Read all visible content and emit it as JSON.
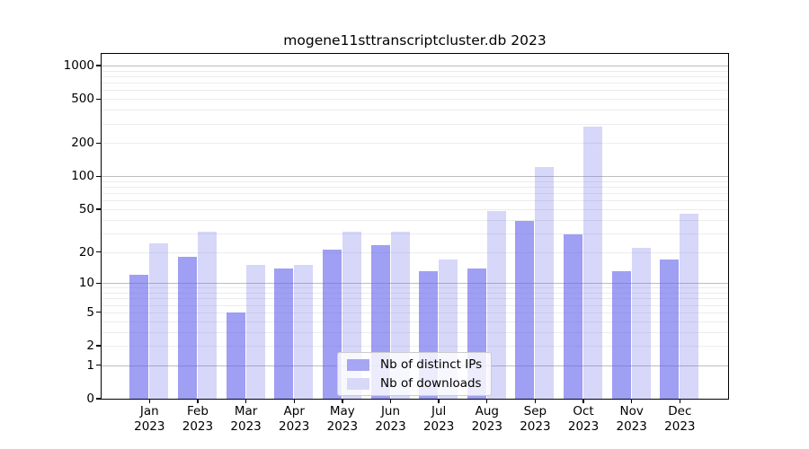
{
  "chart_data": {
    "type": "bar",
    "title": "mogene11sttranscriptcluster.db 2023",
    "categories": [
      "Jan 2023",
      "Feb 2023",
      "Mar 2023",
      "Apr 2023",
      "May 2023",
      "Jun 2023",
      "Jul 2023",
      "Aug 2023",
      "Sep 2023",
      "Oct 2023",
      "Nov 2023",
      "Dec 2023"
    ],
    "series": [
      {
        "name": "Nb of distinct IPs",
        "color": "#a6a6f2",
        "fill_rgba": "rgba(100,100,235,0.62)",
        "values": [
          12,
          18,
          5,
          14,
          21,
          23,
          13,
          14,
          39,
          29,
          13,
          17
        ]
      },
      {
        "name": "Nb of downloads",
        "color": "#d8d8f8",
        "fill_rgba": "rgba(100,100,235,0.26)",
        "values": [
          24,
          31,
          15,
          15,
          31,
          31,
          17,
          48,
          120,
          280,
          22,
          45
        ]
      }
    ],
    "yscale": "log1p",
    "yticks": [
      0,
      1,
      2,
      5,
      10,
      20,
      50,
      100,
      200,
      500,
      1000
    ],
    "minor_gridlines": [
      2,
      3,
      4,
      5,
      6,
      7,
      8,
      9,
      20,
      30,
      40,
      50,
      60,
      70,
      80,
      90,
      200,
      300,
      400,
      500,
      600,
      700,
      800,
      900
    ],
    "major_gridlines": [
      1,
      10,
      100,
      1000
    ],
    "ylim": [
      0,
      1300
    ],
    "grid": true,
    "legend_position": "bottom-center"
  },
  "colors": {
    "background": "#ffffff",
    "frame": "#000000",
    "grid_minor": "#ececec",
    "grid_major": "#bdbdbd",
    "legend_border": "#cccccc",
    "legend_background": "rgba(255,255,255,0.8)"
  }
}
